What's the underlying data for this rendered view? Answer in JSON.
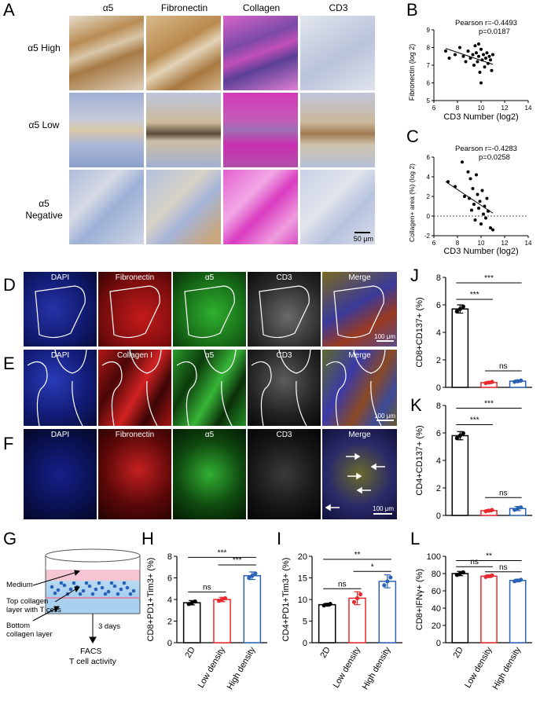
{
  "panels": {
    "A": "A",
    "B": "B",
    "C": "C",
    "D": "D",
    "E": "E",
    "F": "F",
    "G": "G",
    "H": "H",
    "I": "I",
    "J": "J",
    "K": "K",
    "L": "L"
  },
  "panelA": {
    "columns": [
      "α5",
      "Fibronectin",
      "Collagen",
      "CD3"
    ],
    "rows": [
      "α5 High",
      "α5 Low",
      "α5\nNegative"
    ],
    "scale_bar": "50 μm"
  },
  "panelB": {
    "stats": [
      "Pearson r=-0.4493",
      "p=0.0187"
    ],
    "xlabel": "CD3 Number (log2)",
    "ylabel": "Fibronectin (log 2)"
  },
  "panelC": {
    "stats": [
      "Pearson r=-0.4283",
      "p=0.0258"
    ],
    "xlabel": "CD3 Number (log2)",
    "ylabel": "Collagen+ area (%) (log 2)"
  },
  "panelD": {
    "labels": [
      "DAPI",
      "Fibronectin",
      "α5",
      "CD3",
      "Merge"
    ],
    "scale_bar": "100 μm"
  },
  "panelE": {
    "labels": [
      "DAPI",
      "Collagen I",
      "α5",
      "CD3",
      "Merge"
    ],
    "scale_bar": "100 μm"
  },
  "panelF": {
    "labels": [
      "DAPI",
      "Fibronectin",
      "α5",
      "CD3",
      "Merge"
    ],
    "scale_bar": "100 μm"
  },
  "panelG": {
    "medium": "Medium",
    "top1": "Top collagen",
    "top2": "layer with T cells",
    "bottom1": "Bottom",
    "bottom2": "collagen layer",
    "days": "3 days",
    "facs1": "FACS",
    "facs2": "T cell activity"
  },
  "colors": {
    "group1": "#000000",
    "group2": "#e8292d",
    "group3": "#2b62b5"
  },
  "chart_data": [
    {
      "id": "B",
      "type": "scatter",
      "xlabel": "CD3 Number (log2)",
      "ylabel": "Fibronectin (log 2)",
      "xlim": [
        6,
        14
      ],
      "ylim": [
        5,
        9
      ],
      "xticks": [
        6,
        8,
        10,
        12,
        14
      ],
      "yticks": [
        5,
        6,
        7,
        8,
        9
      ],
      "points": [
        [
          7.0,
          7.8
        ],
        [
          7.3,
          7.4
        ],
        [
          7.8,
          7.6
        ],
        [
          8.2,
          8.0
        ],
        [
          8.5,
          7.5
        ],
        [
          8.7,
          7.2
        ],
        [
          8.9,
          7.8
        ],
        [
          9.1,
          7.4
        ],
        [
          9.3,
          7.6
        ],
        [
          9.4,
          7.0
        ],
        [
          9.5,
          8.1
        ],
        [
          9.6,
          7.7
        ],
        [
          9.7,
          7.2
        ],
        [
          9.8,
          7.5
        ],
        [
          9.9,
          6.6
        ],
        [
          10.0,
          7.9
        ],
        [
          10.1,
          7.3
        ],
        [
          10.2,
          7.6
        ],
        [
          10.3,
          6.9
        ],
        [
          10.4,
          7.4
        ],
        [
          10.5,
          7.7
        ],
        [
          10.6,
          7.1
        ],
        [
          10.7,
          7.5
        ],
        [
          10.8,
          7.3
        ],
        [
          10.9,
          6.7
        ],
        [
          11.0,
          7.6
        ],
        [
          10.0,
          6.0
        ],
        [
          9.8,
          8.2
        ]
      ],
      "fit": [
        [
          7.0,
          7.95
        ],
        [
          11.0,
          7.05
        ]
      ]
    },
    {
      "id": "C",
      "type": "scatter",
      "xlabel": "CD3 Number (log2)",
      "ylabel": "Collagen+ area (%) (log 2)",
      "xlim": [
        6,
        14
      ],
      "ylim": [
        -2,
        6
      ],
      "xticks": [
        6,
        8,
        10,
        12,
        14
      ],
      "yticks": [
        -2,
        0,
        2,
        4,
        6
      ],
      "points": [
        [
          7.2,
          3.5
        ],
        [
          7.8,
          3.0
        ],
        [
          8.4,
          5.5
        ],
        [
          8.6,
          2.0
        ],
        [
          8.9,
          4.5
        ],
        [
          9.0,
          1.8
        ],
        [
          9.1,
          3.8
        ],
        [
          9.2,
          0.6
        ],
        [
          9.3,
          2.8
        ],
        [
          9.4,
          1.2
        ],
        [
          9.5,
          -0.4
        ],
        [
          9.6,
          4.2
        ],
        [
          9.7,
          2.2
        ],
        [
          9.8,
          0.8
        ],
        [
          9.9,
          1.5
        ],
        [
          10.0,
          -0.8
        ],
        [
          10.1,
          2.6
        ],
        [
          10.2,
          0.2
        ],
        [
          10.3,
          1.0
        ],
        [
          10.4,
          -0.2
        ],
        [
          10.5,
          1.8
        ],
        [
          10.6,
          0.5
        ],
        [
          10.8,
          -1.2
        ],
        [
          11.0,
          -1.4
        ]
      ],
      "fit": [
        [
          7.0,
          3.5
        ],
        [
          11.0,
          0.3
        ]
      ]
    },
    {
      "id": "H",
      "type": "bar",
      "ylabel": "CD8+PD1+Tim3+ (%)",
      "categories": [
        "2D",
        "Low density",
        "High density"
      ],
      "values": [
        3.7,
        4.0,
        6.2
      ],
      "errors": [
        0.2,
        0.2,
        0.35
      ],
      "ylim": [
        0,
        8
      ],
      "yticks": [
        0,
        2,
        4,
        6,
        8
      ],
      "sig": [
        {
          "a": 0,
          "b": 1,
          "t": "ns",
          "y": 4.7
        },
        {
          "a": 1,
          "b": 2,
          "t": "***",
          "y": 7.2
        },
        {
          "a": 0,
          "b": 2,
          "t": "***",
          "y": 7.9
        }
      ]
    },
    {
      "id": "I",
      "type": "bar",
      "ylabel": "CD4+PD1+Tim3+ (%)",
      "categories": [
        "2D",
        "Low density",
        "High density"
      ],
      "values": [
        8.8,
        10.3,
        14.2
      ],
      "errors": [
        0.3,
        1.5,
        1.5
      ],
      "ylim": [
        0,
        20
      ],
      "yticks": [
        0,
        5,
        10,
        15,
        20
      ],
      "sig": [
        {
          "a": 0,
          "b": 1,
          "t": "ns",
          "y": 12.5
        },
        {
          "a": 1,
          "b": 2,
          "t": "*",
          "y": 16.5
        },
        {
          "a": 0,
          "b": 2,
          "t": "**",
          "y": 19.3
        }
      ]
    },
    {
      "id": "J",
      "type": "bar",
      "ylabel": "CD8+CD137+ (%)",
      "categories": [
        "2D",
        "Low density",
        "High density"
      ],
      "values": [
        5.7,
        0.35,
        0.45
      ],
      "errors": [
        0.3,
        0.08,
        0.08
      ],
      "ylim": [
        0,
        8
      ],
      "yticks": [
        0,
        2,
        4,
        6,
        8
      ],
      "sig": [
        {
          "a": 0,
          "b": 1,
          "t": "***",
          "y": 6.4
        },
        {
          "a": 1,
          "b": 2,
          "t": "ns",
          "y": 1.2
        },
        {
          "a": 0,
          "b": 2,
          "t": "***",
          "y": 7.6
        }
      ]
    },
    {
      "id": "K",
      "type": "bar",
      "ylabel": "CD4+CD137+ (%)",
      "categories": [
        "2D",
        "Low density",
        "High density"
      ],
      "values": [
        5.8,
        0.35,
        0.5
      ],
      "errors": [
        0.3,
        0.08,
        0.15
      ],
      "ylim": [
        0,
        8
      ],
      "yticks": [
        0,
        2,
        4,
        6,
        8
      ],
      "sig": [
        {
          "a": 0,
          "b": 1,
          "t": "***",
          "y": 6.6
        },
        {
          "a": 1,
          "b": 2,
          "t": "ns",
          "y": 1.3
        },
        {
          "a": 0,
          "b": 2,
          "t": "***",
          "y": 7.8
        }
      ]
    },
    {
      "id": "L",
      "type": "bar",
      "ylabel": "CD8+IFNγ+ (%)",
      "categories": [
        "2D",
        "Low density",
        "High density"
      ],
      "values": [
        80,
        77,
        72
      ],
      "errors": [
        2.5,
        1.5,
        1.5
      ],
      "ylim": [
        0,
        100
      ],
      "yticks": [
        0,
        20,
        40,
        60,
        80,
        100
      ],
      "sig": [
        {
          "a": 0,
          "b": 1,
          "t": "ns",
          "y": 88
        },
        {
          "a": 1,
          "b": 2,
          "t": "ns",
          "y": 82
        },
        {
          "a": 0,
          "b": 2,
          "t": "**",
          "y": 95
        }
      ]
    }
  ]
}
